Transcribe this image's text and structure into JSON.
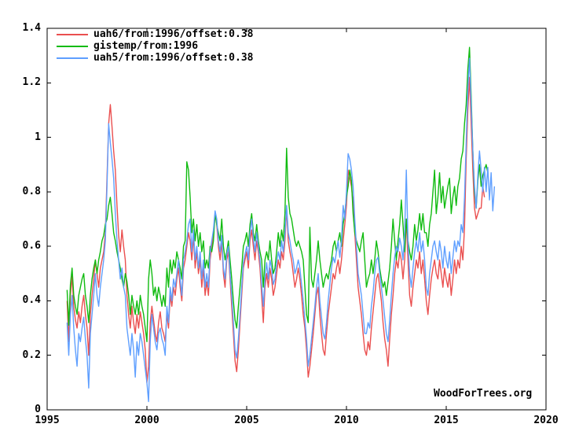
{
  "watermark": "WoodForTrees.org",
  "axes": {
    "x_tick_labels": [
      "1995",
      "2000",
      "2005",
      "2010",
      "2015",
      "2020"
    ],
    "y_tick_labels": [
      "0",
      "0.2",
      "0.4",
      "0.6",
      "0.8",
      "1",
      "1.2",
      "1.4"
    ]
  },
  "chart_data": {
    "type": "line",
    "title": "",
    "xlabel": "",
    "ylabel": "",
    "xlim": [
      1995,
      2020
    ],
    "ylim": [
      0,
      1.4
    ],
    "x_ticks": [
      1995,
      2000,
      2005,
      2010,
      2015,
      2020
    ],
    "y_ticks": [
      0,
      0.2,
      0.4,
      0.6,
      0.8,
      1,
      1.2,
      1.4
    ],
    "grid": false,
    "legend_position": "top-left",
    "x_start": 1996.0,
    "x_step": "monthly",
    "series": [
      {
        "name": "uah6/from:1996/offset:0.38",
        "color": "#ea4f4f",
        "start_year": 1996,
        "monthly_values": [
          0.4,
          0.25,
          0.42,
          0.49,
          0.38,
          0.33,
          0.3,
          0.36,
          0.32,
          0.38,
          0.42,
          0.35,
          0.3,
          0.2,
          0.35,
          0.42,
          0.48,
          0.55,
          0.5,
          0.45,
          0.52,
          0.55,
          0.58,
          0.65,
          0.85,
          1.05,
          1.12,
          1.04,
          0.95,
          0.88,
          0.75,
          0.64,
          0.58,
          0.66,
          0.6,
          0.55,
          0.42,
          0.35,
          0.3,
          0.38,
          0.32,
          0.28,
          0.35,
          0.3,
          0.36,
          0.32,
          0.28,
          0.22,
          0.1,
          0.16,
          0.32,
          0.38,
          0.33,
          0.28,
          0.25,
          0.32,
          0.36,
          0.3,
          0.28,
          0.25,
          0.35,
          0.3,
          0.42,
          0.38,
          0.45,
          0.42,
          0.48,
          0.52,
          0.45,
          0.4,
          0.52,
          0.55,
          0.6,
          0.65,
          0.62,
          0.55,
          0.64,
          0.52,
          0.58,
          0.5,
          0.55,
          0.45,
          0.52,
          0.42,
          0.47,
          0.42,
          0.55,
          0.6,
          0.65,
          0.72,
          0.68,
          0.6,
          0.55,
          0.62,
          0.5,
          0.45,
          0.55,
          0.58,
          0.48,
          0.38,
          0.28,
          0.18,
          0.14,
          0.22,
          0.32,
          0.42,
          0.52,
          0.55,
          0.58,
          0.52,
          0.62,
          0.66,
          0.6,
          0.55,
          0.62,
          0.58,
          0.52,
          0.42,
          0.32,
          0.45,
          0.5,
          0.45,
          0.52,
          0.48,
          0.42,
          0.45,
          0.5,
          0.55,
          0.52,
          0.58,
          0.55,
          0.62,
          0.74,
          0.62,
          0.58,
          0.55,
          0.5,
          0.45,
          0.48,
          0.52,
          0.48,
          0.42,
          0.35,
          0.3,
          0.22,
          0.12,
          0.16,
          0.22,
          0.28,
          0.35,
          0.42,
          0.45,
          0.35,
          0.28,
          0.22,
          0.2,
          0.28,
          0.35,
          0.4,
          0.45,
          0.5,
          0.48,
          0.52,
          0.55,
          0.5,
          0.55,
          0.62,
          0.68,
          0.75,
          0.88,
          0.85,
          0.82,
          0.76,
          0.65,
          0.55,
          0.45,
          0.4,
          0.35,
          0.28,
          0.22,
          0.2,
          0.25,
          0.22,
          0.3,
          0.36,
          0.42,
          0.48,
          0.5,
          0.45,
          0.4,
          0.32,
          0.26,
          0.22,
          0.16,
          0.26,
          0.35,
          0.42,
          0.5,
          0.55,
          0.52,
          0.58,
          0.55,
          0.48,
          0.55,
          0.7,
          0.55,
          0.42,
          0.38,
          0.45,
          0.5,
          0.55,
          0.52,
          0.58,
          0.5,
          0.55,
          0.48,
          0.4,
          0.35,
          0.42,
          0.48,
          0.52,
          0.55,
          0.5,
          0.48,
          0.55,
          0.5,
          0.45,
          0.52,
          0.48,
          0.45,
          0.5,
          0.42,
          0.48,
          0.55,
          0.5,
          0.55,
          0.52,
          0.6,
          0.55,
          0.67,
          0.92,
          1.1,
          1.22,
          1.05,
          0.88,
          0.74,
          0.7,
          0.72,
          0.74,
          0.74,
          0.82,
          0.78
        ]
      },
      {
        "name": "gistemp/from:1996",
        "color": "#10bb10",
        "start_year": 1996,
        "monthly_values": [
          0.44,
          0.31,
          0.46,
          0.52,
          0.42,
          0.38,
          0.35,
          0.42,
          0.45,
          0.48,
          0.5,
          0.42,
          0.38,
          0.32,
          0.42,
          0.48,
          0.52,
          0.55,
          0.5,
          0.55,
          0.58,
          0.62,
          0.64,
          0.68,
          0.7,
          0.75,
          0.78,
          0.72,
          0.65,
          0.62,
          0.58,
          0.55,
          0.52,
          0.48,
          0.45,
          0.5,
          0.47,
          0.42,
          0.35,
          0.42,
          0.38,
          0.35,
          0.4,
          0.35,
          0.42,
          0.38,
          0.35,
          0.3,
          0.25,
          0.48,
          0.55,
          0.5,
          0.42,
          0.45,
          0.4,
          0.45,
          0.42,
          0.38,
          0.42,
          0.38,
          0.52,
          0.45,
          0.55,
          0.5,
          0.55,
          0.52,
          0.58,
          0.55,
          0.52,
          0.48,
          0.6,
          0.62,
          0.91,
          0.88,
          0.78,
          0.65,
          0.7,
          0.62,
          0.68,
          0.6,
          0.65,
          0.58,
          0.62,
          0.52,
          0.55,
          0.52,
          0.6,
          0.58,
          0.62,
          0.72,
          0.68,
          0.65,
          0.62,
          0.7,
          0.6,
          0.55,
          0.58,
          0.62,
          0.55,
          0.48,
          0.4,
          0.33,
          0.3,
          0.38,
          0.45,
          0.52,
          0.6,
          0.62,
          0.65,
          0.6,
          0.68,
          0.72,
          0.65,
          0.62,
          0.68,
          0.62,
          0.58,
          0.55,
          0.45,
          0.55,
          0.58,
          0.55,
          0.62,
          0.55,
          0.5,
          0.52,
          0.58,
          0.65,
          0.6,
          0.66,
          0.62,
          0.72,
          0.96,
          0.78,
          0.72,
          0.7,
          0.66,
          0.62,
          0.6,
          0.62,
          0.6,
          0.58,
          0.55,
          0.45,
          0.35,
          0.32,
          0.67,
          0.48,
          0.45,
          0.5,
          0.55,
          0.62,
          0.55,
          0.5,
          0.45,
          0.48,
          0.5,
          0.48,
          0.52,
          0.55,
          0.6,
          0.62,
          0.58,
          0.62,
          0.65,
          0.6,
          0.68,
          0.72,
          0.78,
          0.82,
          0.88,
          0.84,
          0.72,
          0.65,
          0.62,
          0.6,
          0.58,
          0.62,
          0.65,
          0.55,
          0.45,
          0.48,
          0.5,
          0.55,
          0.5,
          0.55,
          0.62,
          0.58,
          0.52,
          0.48,
          0.45,
          0.47,
          0.42,
          0.47,
          0.52,
          0.6,
          0.7,
          0.62,
          0.55,
          0.62,
          0.68,
          0.77,
          0.68,
          0.58,
          0.7,
          0.62,
          0.58,
          0.55,
          0.6,
          0.68,
          0.62,
          0.66,
          0.72,
          0.66,
          0.72,
          0.65,
          0.65,
          0.6,
          0.68,
          0.72,
          0.8,
          0.88,
          0.72,
          0.78,
          0.87,
          0.76,
          0.82,
          0.74,
          0.78,
          0.82,
          0.85,
          0.72,
          0.78,
          0.82,
          0.75,
          0.82,
          0.85,
          0.92,
          0.95,
          1.05,
          1.12,
          1.25,
          1.33,
          1.15,
          0.95,
          0.8,
          0.74,
          0.84,
          0.9,
          0.82,
          0.86,
          0.88,
          0.9,
          0.87
        ]
      },
      {
        "name": "uah5/from:1996/offset:0.38",
        "color": "#5f9fff",
        "start_year": 1996,
        "monthly_values": [
          0.32,
          0.2,
          0.35,
          0.42,
          0.3,
          0.22,
          0.16,
          0.28,
          0.25,
          0.3,
          0.34,
          0.26,
          0.2,
          0.08,
          0.28,
          0.35,
          0.42,
          0.5,
          0.42,
          0.38,
          0.45,
          0.5,
          0.55,
          0.62,
          0.82,
          1.05,
          0.98,
          0.92,
          0.85,
          0.72,
          0.62,
          0.55,
          0.48,
          0.52,
          0.45,
          0.42,
          0.3,
          0.25,
          0.2,
          0.28,
          0.22,
          0.12,
          0.25,
          0.2,
          0.28,
          0.25,
          0.2,
          0.15,
          0.1,
          0.03,
          0.25,
          0.35,
          0.3,
          0.25,
          0.22,
          0.28,
          0.3,
          0.26,
          0.24,
          0.2,
          0.38,
          0.32,
          0.45,
          0.4,
          0.48,
          0.45,
          0.5,
          0.55,
          0.48,
          0.42,
          0.55,
          0.58,
          0.62,
          0.68,
          0.7,
          0.58,
          0.66,
          0.55,
          0.6,
          0.52,
          0.58,
          0.48,
          0.55,
          0.45,
          0.5,
          0.45,
          0.58,
          0.62,
          0.66,
          0.73,
          0.7,
          0.62,
          0.58,
          0.64,
          0.52,
          0.48,
          0.57,
          0.6,
          0.5,
          0.42,
          0.32,
          0.22,
          0.19,
          0.26,
          0.35,
          0.45,
          0.54,
          0.57,
          0.6,
          0.55,
          0.65,
          0.7,
          0.63,
          0.58,
          0.65,
          0.6,
          0.55,
          0.46,
          0.38,
          0.48,
          0.54,
          0.48,
          0.55,
          0.52,
          0.46,
          0.48,
          0.54,
          0.58,
          0.55,
          0.62,
          0.58,
          0.65,
          0.75,
          0.65,
          0.62,
          0.58,
          0.55,
          0.5,
          0.52,
          0.55,
          0.52,
          0.46,
          0.4,
          0.33,
          0.26,
          0.16,
          0.2,
          0.26,
          0.32,
          0.38,
          0.45,
          0.5,
          0.4,
          0.34,
          0.28,
          0.26,
          0.32,
          0.4,
          0.46,
          0.52,
          0.56,
          0.54,
          0.58,
          0.62,
          0.56,
          0.62,
          0.75,
          0.7,
          0.8,
          0.94,
          0.92,
          0.88,
          0.82,
          0.7,
          0.6,
          0.5,
          0.46,
          0.42,
          0.35,
          0.28,
          0.28,
          0.32,
          0.3,
          0.38,
          0.43,
          0.5,
          0.55,
          0.56,
          0.5,
          0.45,
          0.4,
          0.34,
          0.28,
          0.25,
          0.33,
          0.42,
          0.5,
          0.56,
          0.6,
          0.58,
          0.63,
          0.6,
          0.55,
          0.65,
          0.88,
          0.62,
          0.5,
          0.45,
          0.52,
          0.58,
          0.62,
          0.58,
          0.65,
          0.58,
          0.62,
          0.55,
          0.45,
          0.42,
          0.5,
          0.55,
          0.6,
          0.62,
          0.58,
          0.55,
          0.62,
          0.58,
          0.52,
          0.6,
          0.55,
          0.52,
          0.58,
          0.5,
          0.56,
          0.62,
          0.58,
          0.62,
          0.6,
          0.68,
          0.65,
          0.78,
          0.98,
          1.18,
          1.29,
          1.12,
          0.95,
          0.82,
          0.74,
          0.86,
          0.95,
          0.88,
          0.8,
          0.89,
          0.8,
          0.89,
          0.77,
          0.87,
          0.73,
          0.82
        ]
      }
    ],
    "watermark": "WoodForTrees.org"
  }
}
